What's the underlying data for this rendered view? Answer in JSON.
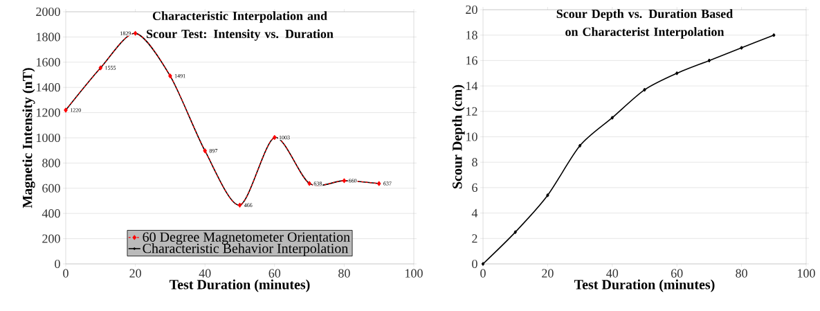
{
  "chart_data": [
    {
      "type": "line",
      "title": "Characteristic Interpolation and Scour Test: Intensity vs. Duration",
      "xlabel": "Test Duration (minutes)",
      "ylabel": "Magnetic Intensity (nT)",
      "x": [
        0,
        10,
        20,
        30,
        40,
        50,
        60,
        70,
        80,
        90
      ],
      "series": [
        {
          "name": "60 Degree Magnetometer Orientation",
          "color": "#ff0000",
          "marker": "diamond",
          "line_style": "dashed",
          "values": [
            1220,
            1555,
            1829,
            1491,
            897,
            466,
            1003,
            638,
            660,
            637
          ],
          "value_labels": [
            "1220",
            "1555",
            "1829",
            "1491",
            "897",
            "466",
            "1003",
            "638",
            "660",
            "637"
          ]
        },
        {
          "name": "Characteristic Behavior Interpolation",
          "color": "#000000",
          "marker": "cross",
          "values": [
            1220,
            1555,
            1829,
            1491,
            897,
            466,
            1003,
            638,
            660,
            637
          ]
        }
      ],
      "xlim": [
        0,
        100
      ],
      "xticks": [
        0,
        20,
        40,
        60,
        80,
        100
      ],
      "ylim": [
        0,
        2000
      ],
      "yticks": [
        0,
        200,
        400,
        600,
        800,
        1000,
        1200,
        1400,
        1600,
        1800,
        2000
      ],
      "grid": "y",
      "legend": "bottom"
    },
    {
      "type": "line",
      "title": "Scour Depth vs. Duration Based on Characterist Interpolation",
      "xlabel": "Test Duration (minutes)",
      "ylabel": "Scour Depth (cm)",
      "x": [
        0,
        10,
        20,
        30,
        40,
        50,
        60,
        70,
        80,
        90
      ],
      "series": [
        {
          "color": "#000000",
          "marker": "diamond",
          "values": [
            0,
            2.5,
            5.4,
            9.3,
            11.5,
            13.7,
            15,
            16,
            17,
            18
          ]
        }
      ],
      "xlim": [
        0,
        100
      ],
      "xticks": [
        0,
        20,
        40,
        60,
        80,
        100
      ],
      "ylim": [
        0,
        20
      ],
      "yticks": [
        0,
        2,
        4,
        6,
        8,
        10,
        12,
        14,
        16,
        18,
        20
      ],
      "grid": "y",
      "legend": false
    }
  ]
}
